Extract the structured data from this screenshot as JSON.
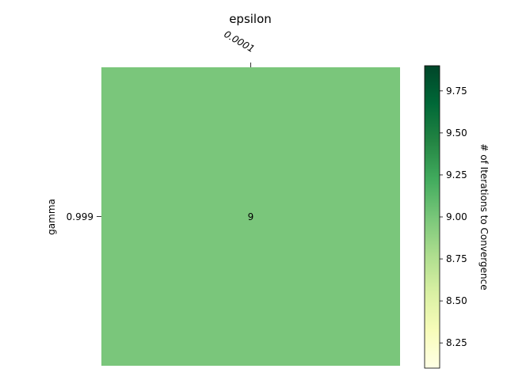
{
  "chart_data": {
    "type": "heatmap",
    "title": "",
    "xlabel": "epsilon",
    "ylabel": "gamma",
    "x_categories": [
      "0.0001"
    ],
    "y_categories": [
      "0.999"
    ],
    "values": [
      [
        9
      ]
    ],
    "cell_labels": [
      [
        "9"
      ]
    ],
    "colorbar": {
      "label": "# of Iterations to Convergence",
      "colormap": "YlGn",
      "range": [
        8.1,
        9.9
      ],
      "ticks": [
        "8.25",
        "8.50",
        "8.75",
        "9.00",
        "9.25",
        "9.50",
        "9.75"
      ],
      "tick_values": [
        8.25,
        8.5,
        8.75,
        9.0,
        9.25,
        9.5,
        9.75
      ]
    },
    "cell_color": "#7ac67b",
    "cell_text_color": "#ffffff",
    "gradient_stops": [
      "#ffffe5",
      "#f7fcb9",
      "#d9f0a3",
      "#addd8e",
      "#78c679",
      "#41ab5d",
      "#238443",
      "#006837",
      "#004529"
    ]
  }
}
